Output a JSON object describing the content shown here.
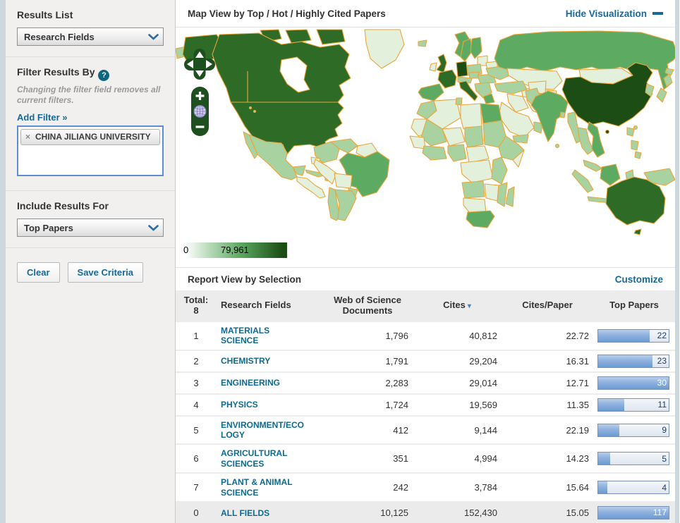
{
  "colors": {
    "accent_link": "#15699b",
    "cites_sort": "#4d83b8",
    "field_link": "#0e6a8e",
    "map_darkest": "#1b4d14",
    "map_dark": "#2e6b27",
    "map_medium": "#5dab62",
    "map_light": "#a9d2a1",
    "map_pale": "#e3f0dc",
    "map_border": "#e9a63b",
    "control_green": "#1d4f1f"
  },
  "sidebar": {
    "results_list": {
      "heading": "Results List",
      "selected": "Research Fields"
    },
    "filter": {
      "heading": "Filter Results By",
      "help_icon": "?",
      "note": "Changing the filter field removes all current filters.",
      "add_filter": "Add Filter »",
      "tags": [
        {
          "remove": "×",
          "label": "CHINA JILIANG UNIVERSITY"
        }
      ]
    },
    "include_results": {
      "heading": "Include Results For",
      "selected": "Top Papers"
    },
    "buttons": {
      "clear": "Clear",
      "save": "Save Criteria"
    }
  },
  "map_panel": {
    "title": "Map View by Top / Hot / Highly Cited Papers",
    "hide_link": "Hide Visualization",
    "legend": {
      "min": "0",
      "max": "79,961"
    },
    "controls": {
      "zoom_in": "+",
      "zoom_out": "−"
    }
  },
  "report": {
    "title": "Report View by Selection",
    "customize": "Customize",
    "table": {
      "total_label": "Total:",
      "total_count": "8",
      "headers": [
        "Research Fields",
        "Web of Science Documents",
        "Cites",
        "Cites/Paper",
        "Top Papers"
      ],
      "sort_column": "Cites",
      "sort_indicator": "▾",
      "bar_scale_max": 30,
      "rows": [
        {
          "rank": "1",
          "field": "MATERIALS SCIENCE",
          "docs": "1,796",
          "cites": "40,812",
          "cites_per_paper": "22.72",
          "top_papers": 22
        },
        {
          "rank": "2",
          "field": "CHEMISTRY",
          "docs": "1,791",
          "cites": "29,204",
          "cites_per_paper": "16.31",
          "top_papers": 23
        },
        {
          "rank": "3",
          "field": "ENGINEERING",
          "docs": "2,283",
          "cites": "29,014",
          "cites_per_paper": "12.71",
          "top_papers": 30
        },
        {
          "rank": "4",
          "field": "PHYSICS",
          "docs": "1,724",
          "cites": "19,569",
          "cites_per_paper": "11.35",
          "top_papers": 11
        },
        {
          "rank": "5",
          "field": "ENVIRONMENT/ECOLOGY",
          "docs": "412",
          "cites": "9,144",
          "cites_per_paper": "22.19",
          "top_papers": 9
        },
        {
          "rank": "6",
          "field": "AGRICULTURAL SCIENCES",
          "docs": "351",
          "cites": "4,994",
          "cites_per_paper": "14.23",
          "top_papers": 5
        },
        {
          "rank": "7",
          "field": "PLANT & ANIMAL SCIENCE",
          "docs": "242",
          "cites": "3,784",
          "cites_per_paper": "15.64",
          "top_papers": 4
        },
        {
          "rank": "0",
          "field": "ALL FIELDS",
          "docs": "10,125",
          "cites": "152,430",
          "cites_per_paper": "15.05",
          "top_papers": 117,
          "is_total": true
        }
      ]
    }
  }
}
